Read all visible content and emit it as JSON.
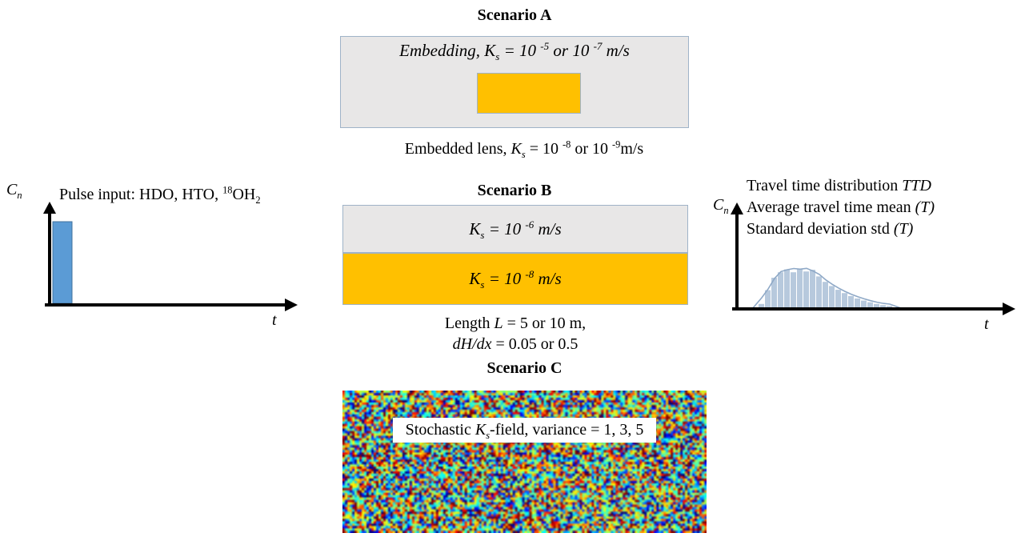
{
  "colors": {
    "accent_orange": "#ffc000",
    "box_gray": "#e8e7e7",
    "box_border": "#9fb3c8",
    "pulse_blue": "#5b9bd5",
    "pulse_blue_border": "#41719c",
    "hist_fill": "#b7c9dd",
    "hist_line": "#8fa9c7",
    "axis_black": "#000000"
  },
  "left_plot": {
    "y_axis_label": [
      {
        "t": "C",
        "i": 1
      },
      {
        "t": "n",
        "i": 1,
        "sub": 1
      }
    ],
    "x_axis_label": [
      {
        "t": "t",
        "i": 1
      }
    ],
    "annotation": [
      {
        "t": "Pulse input: HDO, HTO, "
      },
      {
        "t": "18",
        "sup": 1
      },
      {
        "t": "OH"
      },
      {
        "t": "2",
        "sub": 1
      }
    ]
  },
  "scenario_a": {
    "title": "Scenario A",
    "box_label": [
      {
        "t": "Embedding, ",
        "i": 1
      },
      {
        "t": "K",
        "i": 1
      },
      {
        "t": "s",
        "i": 1,
        "sub": 1
      },
      {
        "t": " = 10 ",
        "i": 1
      },
      {
        "t": "-5",
        "i": 1,
        "sup": 1
      },
      {
        "t": " or 10 ",
        "i": 1
      },
      {
        "t": "-7",
        "i": 1,
        "sup": 1
      },
      {
        "t": " m/s",
        "i": 1
      }
    ],
    "caption": [
      {
        "t": "Embedded lens, "
      },
      {
        "t": "K",
        "i": 1
      },
      {
        "t": "s",
        "i": 1,
        "sub": 1
      },
      {
        "t": " = 10 "
      },
      {
        "t": "-8",
        "sup": 1
      },
      {
        "t": " or 10 "
      },
      {
        "t": "-9",
        "sup": 1
      },
      {
        "t": "m/s"
      }
    ]
  },
  "scenario_b": {
    "title": "Scenario B",
    "top_box_label": [
      {
        "t": "K",
        "i": 1
      },
      {
        "t": "s",
        "i": 1,
        "sub": 1
      },
      {
        "t": " = 10 ",
        "i": 1
      },
      {
        "t": "-6",
        "i": 1,
        "sup": 1
      },
      {
        "t": " m/s",
        "i": 1
      }
    ],
    "bottom_box_label": [
      {
        "t": "K",
        "i": 1
      },
      {
        "t": "s",
        "i": 1,
        "sub": 1
      },
      {
        "t": " = 10 ",
        "i": 1
      },
      {
        "t": "-8",
        "i": 1,
        "sup": 1
      },
      {
        "t": " m/s",
        "i": 1
      }
    ],
    "caption_line1": [
      {
        "t": "Length "
      },
      {
        "t": "L",
        "i": 1
      },
      {
        "t": " = 5 or 10 m,"
      }
    ],
    "caption_line2": [
      {
        "t": "dH/dx",
        "i": 1
      },
      {
        "t": " = 0.05 or 0.5"
      }
    ]
  },
  "scenario_c": {
    "title": "Scenario C",
    "field_label": [
      {
        "t": "Stochastic "
      },
      {
        "t": "K",
        "i": 1
      },
      {
        "t": "s",
        "i": 1,
        "sub": 1
      },
      {
        "t": "-field, variance = 1, 3, 5"
      }
    ]
  },
  "right_plot": {
    "line1": [
      {
        "t": "Travel time distribution "
      },
      {
        "t": "TTD",
        "i": 1
      }
    ],
    "line2": [
      {
        "t": "Average travel time mean "
      },
      {
        "t": "(T)",
        "i": 1
      }
    ],
    "line3": [
      {
        "t": "Standard deviation std "
      },
      {
        "t": "(T)",
        "i": 1
      }
    ],
    "y_axis_label": [
      {
        "t": "C",
        "i": 1
      },
      {
        "t": "n",
        "i": 1,
        "sub": 1
      }
    ],
    "x_axis_label": [
      {
        "t": "t",
        "i": 1
      }
    ],
    "histogram_heights": [
      0.12,
      0.45,
      0.75,
      0.88,
      0.95,
      0.88,
      0.97,
      0.9,
      0.94,
      0.78,
      0.65,
      0.55,
      0.46,
      0.38,
      0.31,
      0.25,
      0.2,
      0.16,
      0.12,
      0.09,
      0.07
    ]
  }
}
